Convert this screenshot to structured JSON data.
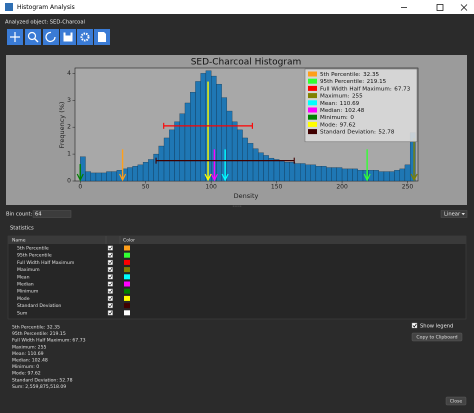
{
  "window": {
    "title": "Histogram Analysis",
    "analyzed_object": "Analyzed object: SED-Charcoal"
  },
  "chart_data": {
    "type": "histogram",
    "title": "SED-Charcoal Histogram",
    "x_label": "Density",
    "y_label": "Frequency (%)",
    "bins": [
      0,
      4,
      8,
      12,
      16,
      20,
      24,
      28,
      32,
      36,
      40,
      44,
      48,
      52,
      56,
      60,
      64,
      68,
      72,
      76,
      80,
      84,
      88,
      92,
      96,
      100,
      104,
      108,
      112,
      116,
      120,
      124,
      128,
      132,
      136,
      140,
      144,
      148,
      152,
      156,
      160,
      164,
      168,
      172,
      176,
      180,
      184,
      188,
      192,
      196,
      200,
      204,
      208,
      212,
      216,
      220,
      224,
      228,
      232,
      236,
      240,
      244,
      248,
      252,
      256
    ],
    "values": [
      0.9,
      0.35,
      0.3,
      0.3,
      0.3,
      0.35,
      0.35,
      0.4,
      0.45,
      0.5,
      0.55,
      0.6,
      0.7,
      0.8,
      1.0,
      1.3,
      1.6,
      1.9,
      2.2,
      2.5,
      2.9,
      3.3,
      3.7,
      4.0,
      4.1,
      3.9,
      3.6,
      3.1,
      2.6,
      2.2,
      1.9,
      1.6,
      1.4,
      1.2,
      1.05,
      0.95,
      0.85,
      0.8,
      0.75,
      0.7,
      0.7,
      0.65,
      0.65,
      0.6,
      0.6,
      0.55,
      0.55,
      0.5,
      0.5,
      0.5,
      0.45,
      0.45,
      0.45,
      0.4,
      0.4,
      0.4,
      0.4,
      0.35,
      0.35,
      0.35,
      0.4,
      0.45,
      0.6,
      1.8
    ],
    "color": "#1f77b4",
    "xlim": [
      -4,
      258
    ],
    "ylim": [
      0,
      4.2
    ],
    "xticks": [
      0,
      50,
      100,
      150,
      200,
      250
    ],
    "yticks": [
      0,
      1,
      2,
      3,
      4
    ],
    "legend": "upper right",
    "legend_entries": [
      {
        "label": "5th Percentile:",
        "value": 32.35,
        "color": "#ff9f1a"
      },
      {
        "label": "95th Percentile:",
        "value": 219.15,
        "color": "#33ff33"
      },
      {
        "label": "Full Width Half Maximum:",
        "value": 67.73,
        "color": "#ff0000"
      },
      {
        "label": "Maximum:",
        "value": 255,
        "color": "#808000"
      },
      {
        "label": "Mean:",
        "value": 110.69,
        "color": "#00ffff"
      },
      {
        "label": "Median:",
        "value": 102.48,
        "color": "#ff00ff"
      },
      {
        "label": "Minimum:",
        "value": 0,
        "color": "#008000"
      },
      {
        "label": "Mode:",
        "value": 97.62,
        "color": "#ffff00"
      },
      {
        "label": "Standard Deviation:",
        "value": 52.78,
        "color": "#400000"
      }
    ]
  },
  "controls": {
    "bin_count_label": "Bin count:",
    "bin_count": "64",
    "scale": "Linear",
    "statistics_label": "Statistics",
    "show_legend": "Show legend",
    "copy": "Copy to Clipboard",
    "close": "Close"
  },
  "table": {
    "headers": [
      "Name",
      "Color"
    ],
    "rows": [
      {
        "name": "5th Percentile",
        "color": "#ff9f1a"
      },
      {
        "name": "95th Percentile",
        "color": "#33ff33"
      },
      {
        "name": "Full Width Half Maximum",
        "color": "#ff0000"
      },
      {
        "name": "Maximum",
        "color": "#808000"
      },
      {
        "name": "Mean",
        "color": "#00ffff"
      },
      {
        "name": "Median",
        "color": "#ff00ff"
      },
      {
        "name": "Minimum",
        "color": "#008000"
      },
      {
        "name": "Mode",
        "color": "#ffff00"
      },
      {
        "name": "Standard Deviation",
        "color": "#400000"
      },
      {
        "name": "Sum",
        "color": "#ffffff"
      }
    ]
  },
  "statistics_text": [
    "5th Percentile: 32.35",
    "95th Percentile: 219.15",
    "Full Width Half Maximum: 67.73",
    "Maximum: 255",
    "Mean: 110.69",
    "Median: 102.48",
    "Minimum: 0",
    "Mode: 97.62",
    "Standard Deviation: 52.78",
    "Sum: 2,559,875,518.09"
  ]
}
